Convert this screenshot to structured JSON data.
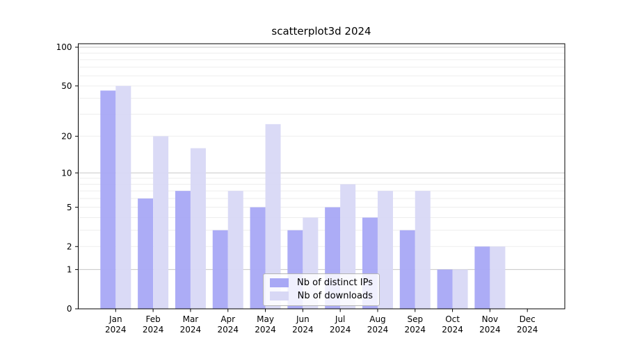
{
  "title": "scatterplot3d 2024",
  "legend": {
    "items": [
      {
        "label": "Nb of distinct IPs",
        "color": "#a8a8f5"
      },
      {
        "label": "Nb of downloads",
        "color": "#d8d8f5"
      }
    ]
  },
  "colors": {
    "ips_bar": "#a8a8f5",
    "downloads_bar": "#d8d8f5",
    "grid_major": "#c6c6c6",
    "grid_minor": "#ededed",
    "spine": "#000000",
    "text": "#000000",
    "legend_border": "#b3b3b3"
  },
  "chart_data": {
    "type": "bar",
    "title": "scatterplot3d 2024",
    "categories": [
      "Jan",
      "Feb",
      "Mar",
      "Apr",
      "May",
      "Jun",
      "Jul",
      "Aug",
      "Sep",
      "Oct",
      "Nov",
      "Dec"
    ],
    "year_label": "2024",
    "series": [
      {
        "name": "Nb of distinct IPs",
        "color": "#a8a8f5",
        "values": [
          46,
          6,
          7,
          3,
          5,
          3,
          5,
          4,
          3,
          1,
          2,
          0
        ]
      },
      {
        "name": "Nb of downloads",
        "color": "#d8d8f5",
        "values": [
          50,
          20,
          16,
          7,
          25,
          4,
          8,
          7,
          7,
          1,
          2,
          0
        ]
      }
    ],
    "xlabel": "",
    "ylabel": "",
    "y_scale": "log1p",
    "ylim": [
      0,
      100
    ],
    "y_ticks": [
      0,
      1,
      2,
      5,
      10,
      20,
      50,
      100
    ],
    "grid_major_values": [
      1,
      10,
      100
    ],
    "grid_minor_values": [
      2,
      3,
      4,
      5,
      6,
      7,
      8,
      9,
      20,
      30,
      40,
      50,
      60,
      70,
      80,
      90
    ],
    "grid": true,
    "legend_position": "lower center"
  }
}
